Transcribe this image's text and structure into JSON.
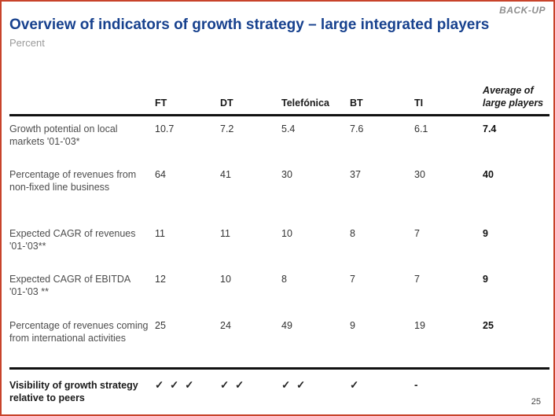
{
  "page": {
    "backup_label": "BACK-UP",
    "title": "Overview of indicators of growth strategy – large integrated players",
    "subtitle": "Percent",
    "page_number": "25",
    "accent_border_color": "#c8432b",
    "title_color": "#17418e"
  },
  "table": {
    "columns": [
      "FT",
      "DT",
      "Telefónica",
      "BT",
      "TI",
      "Average of large players"
    ],
    "rows": [
      {
        "label": "Growth potential on local markets '01-'03*",
        "values": [
          "10.7",
          "7.2",
          "5.4",
          "7.6",
          "6.1",
          "7.4"
        ]
      },
      {
        "label": "Percentage of revenues from non-fixed line business",
        "values": [
          "64",
          "41",
          "30",
          "37",
          "30",
          "40"
        ]
      },
      {
        "label": "Expected CAGR of revenues '01-'03**",
        "values": [
          "11",
          "11",
          "10",
          "8",
          "7",
          "9"
        ]
      },
      {
        "label": "Expected CAGR of EBITDA '01-'03 **",
        "values": [
          "12",
          "10",
          "8",
          "7",
          "7",
          "9"
        ]
      },
      {
        "label": "Percentage of revenues coming from international activities",
        "values": [
          "25",
          "24",
          "49",
          "9",
          "19",
          "25"
        ]
      },
      {
        "label": "Visibility of growth strategy relative to peers",
        "values": [
          "✓ ✓ ✓",
          "✓ ✓",
          "✓ ✓",
          "✓",
          "-",
          ""
        ]
      }
    ]
  }
}
